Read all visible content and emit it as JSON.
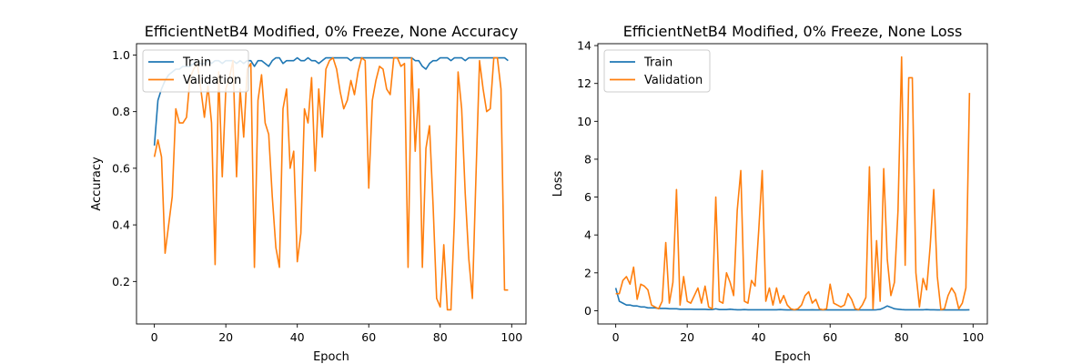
{
  "chart_data": [
    {
      "type": "line",
      "title": "EfficientNetB4 Modified, 0% Freeze, None Accuracy",
      "xlabel": "Epoch",
      "ylabel": "Accuracy",
      "xlim": [
        -5,
        104
      ],
      "ylim": [
        0.05,
        1.04
      ],
      "xticks": [
        0,
        20,
        40,
        60,
        80,
        100
      ],
      "yticks": [
        0.2,
        0.4,
        0.6,
        0.8,
        1.0
      ],
      "ytick_decimals": 1,
      "legend": "upper-left",
      "series": [
        {
          "name": "Train",
          "color": "#1f77b4",
          "values": [
            0.68,
            0.84,
            0.88,
            0.91,
            0.93,
            0.94,
            0.95,
            0.95,
            0.96,
            0.96,
            0.96,
            0.97,
            0.97,
            0.97,
            0.97,
            0.98,
            0.97,
            0.98,
            0.98,
            0.97,
            0.98,
            0.98,
            0.98,
            0.97,
            0.98,
            0.97,
            0.98,
            0.98,
            0.96,
            0.98,
            0.98,
            0.97,
            0.96,
            0.98,
            0.99,
            0.99,
            0.97,
            0.98,
            0.98,
            0.98,
            0.99,
            0.98,
            0.98,
            0.99,
            0.98,
            0.98,
            0.97,
            0.98,
            0.99,
            0.99,
            0.99,
            0.99,
            0.99,
            0.99,
            0.99,
            0.98,
            0.99,
            0.99,
            0.99,
            0.99,
            0.99,
            0.99,
            0.99,
            0.99,
            0.99,
            0.99,
            0.99,
            0.99,
            0.99,
            0.99,
            0.99,
            0.99,
            0.99,
            0.98,
            0.98,
            0.96,
            0.95,
            0.97,
            0.98,
            0.98,
            0.99,
            0.99,
            0.99,
            0.98,
            0.99,
            0.99,
            0.99,
            0.98,
            0.99,
            0.99,
            0.99,
            0.99,
            0.99,
            0.99,
            0.99,
            0.99,
            0.99,
            0.99,
            0.99,
            0.98
          ]
        },
        {
          "name": "Validation",
          "color": "#ff7f0e",
          "values": [
            0.64,
            0.7,
            0.64,
            0.3,
            0.4,
            0.5,
            0.81,
            0.76,
            0.76,
            0.78,
            0.92,
            0.95,
            0.97,
            0.88,
            0.78,
            0.89,
            0.76,
            0.26,
            0.94,
            0.57,
            0.88,
            0.92,
            0.98,
            0.57,
            0.88,
            0.71,
            0.95,
            0.97,
            0.25,
            0.84,
            0.93,
            0.76,
            0.72,
            0.5,
            0.32,
            0.25,
            0.81,
            0.88,
            0.6,
            0.66,
            0.27,
            0.37,
            0.81,
            0.76,
            0.92,
            0.59,
            0.88,
            0.71,
            0.95,
            0.98,
            0.99,
            0.95,
            0.87,
            0.81,
            0.84,
            0.91,
            0.86,
            0.94,
            0.99,
            0.98,
            0.53,
            0.84,
            0.91,
            0.96,
            0.95,
            0.88,
            0.86,
            0.99,
            0.99,
            0.96,
            0.97,
            0.25,
            0.99,
            0.66,
            0.88,
            0.25,
            0.67,
            0.75,
            0.47,
            0.14,
            0.11,
            0.33,
            0.1,
            0.1,
            0.43,
            0.94,
            0.81,
            0.51,
            0.28,
            0.14,
            0.57,
            0.98,
            0.88,
            0.8,
            0.81,
            0.99,
            0.99,
            0.88,
            0.17,
            0.17
          ]
        }
      ]
    },
    {
      "type": "line",
      "title": "EfficientNetB4 Modified, 0% Freeze, None Loss",
      "xlabel": "Epoch",
      "ylabel": "Loss",
      "xlim": [
        -5,
        104
      ],
      "ylim": [
        -0.7,
        14.1
      ],
      "xticks": [
        0,
        20,
        40,
        60,
        80,
        100
      ],
      "yticks": [
        0,
        2,
        4,
        6,
        8,
        10,
        12,
        14
      ],
      "ytick_decimals": 0,
      "legend": "upper-left",
      "series": [
        {
          "name": "Train",
          "color": "#1f77b4",
          "values": [
            1.2,
            0.5,
            0.4,
            0.3,
            0.3,
            0.25,
            0.25,
            0.2,
            0.2,
            0.15,
            0.15,
            0.15,
            0.12,
            0.12,
            0.12,
            0.1,
            0.1,
            0.1,
            0.08,
            0.08,
            0.08,
            0.08,
            0.07,
            0.07,
            0.07,
            0.07,
            0.06,
            0.06,
            0.1,
            0.06,
            0.06,
            0.06,
            0.08,
            0.06,
            0.05,
            0.05,
            0.06,
            0.05,
            0.05,
            0.05,
            0.05,
            0.05,
            0.05,
            0.05,
            0.05,
            0.05,
            0.06,
            0.05,
            0.04,
            0.04,
            0.04,
            0.04,
            0.04,
            0.04,
            0.04,
            0.05,
            0.04,
            0.04,
            0.04,
            0.04,
            0.04,
            0.04,
            0.04,
            0.04,
            0.04,
            0.04,
            0.04,
            0.04,
            0.04,
            0.04,
            0.04,
            0.04,
            0.04,
            0.05,
            0.07,
            0.15,
            0.25,
            0.18,
            0.1,
            0.08,
            0.06,
            0.05,
            0.05,
            0.05,
            0.05,
            0.05,
            0.05,
            0.06,
            0.05,
            0.05,
            0.04,
            0.04,
            0.04,
            0.04,
            0.04,
            0.04,
            0.04,
            0.04,
            0.04,
            0.05
          ]
        },
        {
          "name": "Validation",
          "color": "#ff7f0e",
          "values": [
            0.9,
            0.9,
            1.6,
            1.8,
            1.4,
            2.3,
            0.6,
            1.4,
            1.3,
            1.1,
            0.3,
            0.2,
            0.1,
            0.5,
            3.6,
            0.4,
            1.5,
            6.4,
            0.3,
            1.8,
            0.5,
            0.4,
            0.8,
            1.2,
            0.4,
            1.3,
            0.2,
            0.1,
            6.0,
            0.5,
            0.4,
            2.0,
            1.5,
            0.8,
            5.3,
            7.4,
            0.5,
            0.4,
            1.6,
            1.3,
            4.2,
            7.4,
            0.5,
            1.2,
            0.3,
            1.2,
            0.4,
            0.8,
            0.3,
            0.1,
            0.05,
            0.1,
            0.3,
            0.8,
            1.0,
            0.4,
            0.6,
            0.1,
            0.05,
            0.1,
            1.4,
            0.4,
            0.3,
            0.2,
            0.3,
            0.9,
            0.6,
            0.1,
            0.05,
            0.3,
            0.7,
            7.6,
            0.1,
            3.7,
            0.5,
            7.5,
            2.7,
            0.8,
            1.5,
            5.3,
            13.4,
            2.4,
            12.3,
            12.3,
            2.0,
            0.2,
            1.7,
            1.1,
            3.4,
            6.4,
            1.8,
            0.05,
            0.1,
            0.8,
            1.2,
            0.9,
            0.1,
            0.4,
            1.2,
            11.5
          ]
        }
      ]
    }
  ]
}
